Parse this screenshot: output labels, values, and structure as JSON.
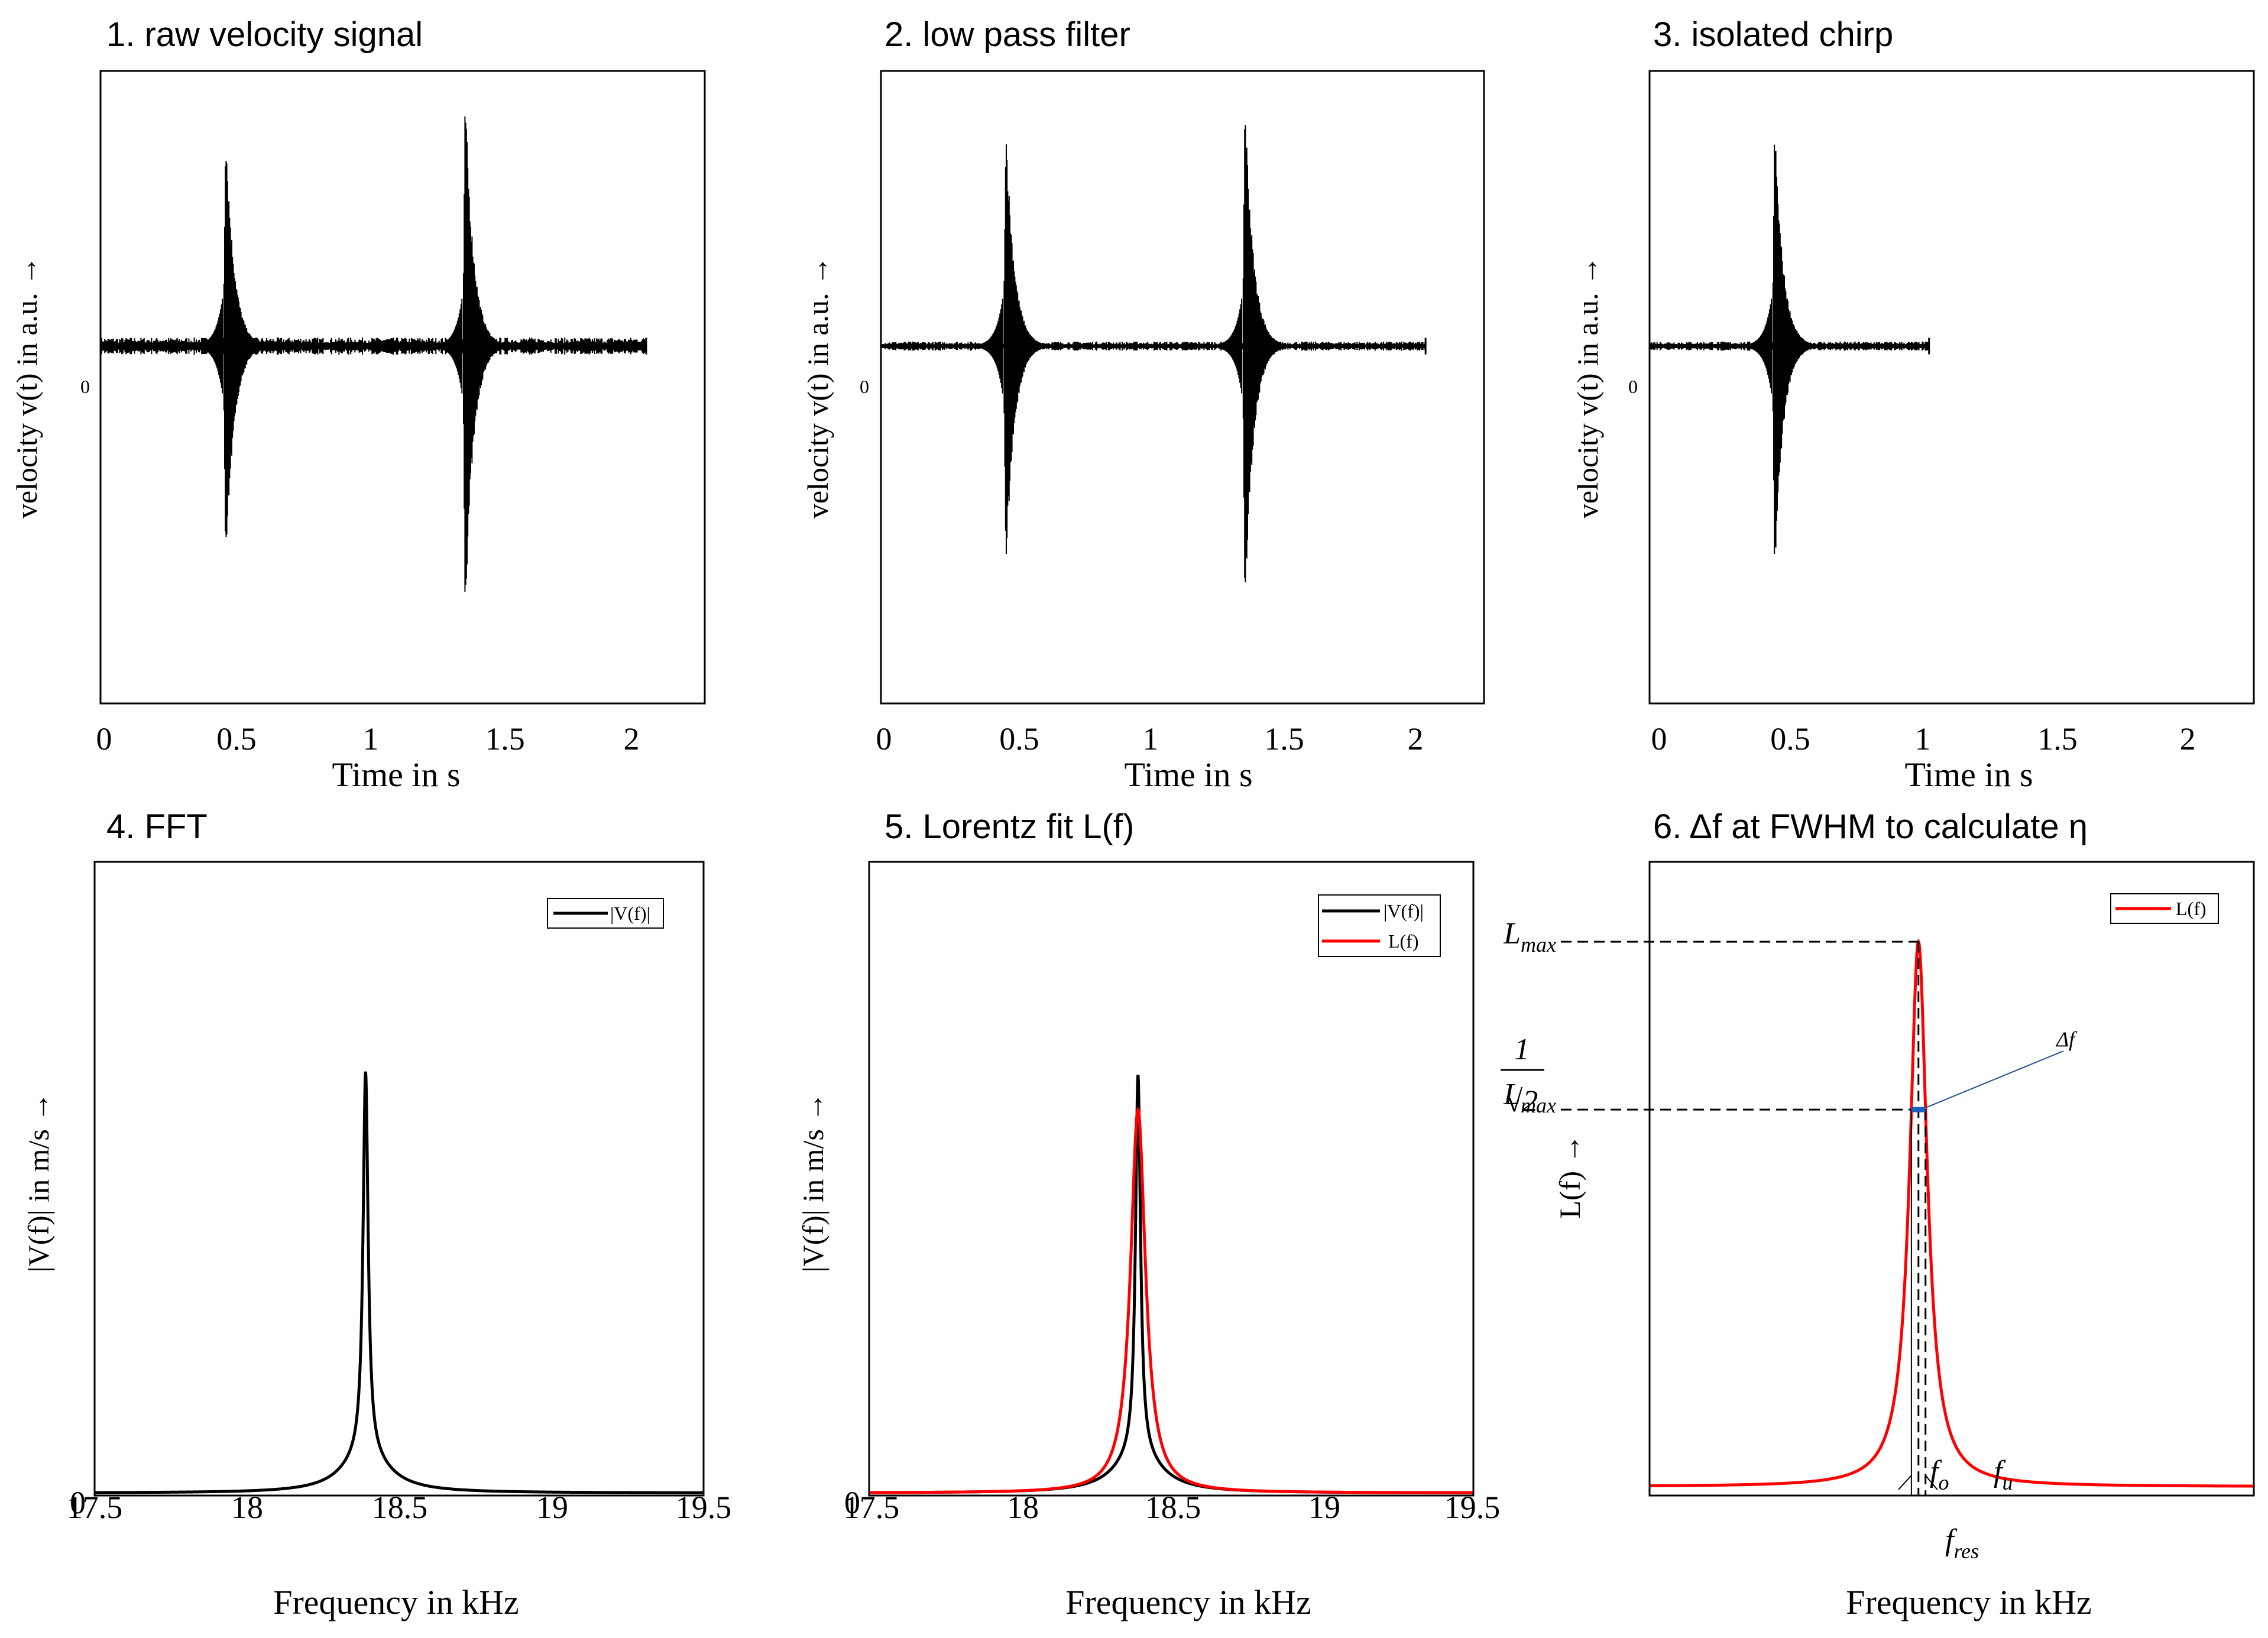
{
  "chart_data": [
    {
      "id": "p1",
      "type": "line",
      "title": "1. raw velocity signal",
      "xlabel": "Time in s",
      "ylabel": "velocity v(t) in a.u. →",
      "x_ticks": [
        "0",
        "0.5",
        "1",
        "1.5",
        "2"
      ],
      "y_ticks": [
        "0"
      ],
      "xlim": [
        0,
        2.27
      ],
      "ylim": [
        -1.0,
        0.77
      ],
      "signal_end": 2.05,
      "bursts": [
        {
          "t": 0.47,
          "pos": 0.64,
          "neg": -0.66
        },
        {
          "t": 1.37,
          "pos": 0.72,
          "neg": -0.77
        }
      ],
      "noise_level": 0.015
    },
    {
      "id": "p2",
      "type": "line",
      "title": "2. low pass filter",
      "xlabel": "Time in s",
      "ylabel": "velocity v(t) in a.u. →",
      "x_ticks": [
        "0",
        "0.5",
        "1",
        "1.5",
        "2"
      ],
      "y_ticks": [
        "0"
      ],
      "xlim": [
        0,
        2.27
      ],
      "ylim": [
        -1.0,
        0.77
      ],
      "signal_end": 2.05,
      "bursts": [
        {
          "t": 0.47,
          "pos": 0.64,
          "neg": -0.66
        },
        {
          "t": 1.37,
          "pos": 0.72,
          "neg": -0.77
        }
      ],
      "noise_level": 0.008
    },
    {
      "id": "p3",
      "type": "line",
      "title": "3. isolated chirp",
      "xlabel": "Time in s",
      "ylabel": "velocity v(t) in a.u. →",
      "x_ticks": [
        "0",
        "0.5",
        "1",
        "1.5",
        "2"
      ],
      "y_ticks": [
        "0"
      ],
      "xlim": [
        0,
        2.27
      ],
      "ylim": [
        -1.0,
        0.77
      ],
      "signal_end": 1.05,
      "bursts": [
        {
          "t": 0.47,
          "pos": 0.64,
          "neg": -0.66
        }
      ],
      "noise_level": 0.008
    },
    {
      "id": "p4",
      "type": "line",
      "title": "4. FFT",
      "xlabel": "Frequency in kHz",
      "ylabel": "|V(f)| in m/s →",
      "x_ticks": [
        "17.5",
        "18",
        "18.5",
        "19",
        "19.5"
      ],
      "y_ticks": [
        "0"
      ],
      "xlim": [
        17.5,
        19.5
      ],
      "ylim": [
        0,
        1.0
      ],
      "series": [
        {
          "name": "|V(f)|",
          "color": "#000000",
          "peak_f": 18.39,
          "peak": 0.605,
          "gamma": 0.01,
          "base": 0.004,
          "wide_amp": 0.06,
          "wide_gamma": 0.09
        }
      ],
      "legend": [
        "|V(f)|"
      ]
    },
    {
      "id": "p5",
      "type": "line",
      "title": "5. Lorentz fit L(f)",
      "xlabel": "Frequency in kHz",
      "ylabel": "|V(f)| in m/s →",
      "x_ticks": [
        "17.5",
        "18",
        "18.5",
        "19",
        "19.5"
      ],
      "y_ticks": [
        "0"
      ],
      "xlim": [
        17.5,
        19.5
      ],
      "ylim": [
        0,
        1.0
      ],
      "series": [
        {
          "name": "|V(f)|",
          "color": "#000000",
          "peak_f": 18.39,
          "peak": 0.6,
          "gamma": 0.01,
          "base": 0.004,
          "wide_amp": 0.06,
          "wide_gamma": 0.09
        },
        {
          "name": "L(f)",
          "color": "#ff0000",
          "peak_f": 18.39,
          "peak": 0.605,
          "gamma": 0.03,
          "base": 0.004,
          "wide_amp": 0,
          "wide_gamma": 0.09
        }
      ],
      "legend": [
        "|V(f)|",
        "L(f)"
      ]
    },
    {
      "id": "p6",
      "type": "line",
      "title": "6. Δf at FWHM to calculate η",
      "xlabel": "Frequency in kHz",
      "ylabel": "L(f) →",
      "x_ticks": [],
      "y_ticks": [],
      "xlim": [
        17.5,
        19.5
      ],
      "ylim": [
        0,
        1.0
      ],
      "series": [
        {
          "name": "L(f)",
          "color": "#ff0000",
          "peak_f": 18.39,
          "peak": 0.86,
          "gamma": 0.035,
          "base": 0.014,
          "wide_amp": 0,
          "wide_gamma": 0.09
        }
      ],
      "legend": [
        "L(f)"
      ],
      "annotations": {
        "lmax": "L",
        "lmax_sub": "max",
        "frac_num": "1",
        "frac_den": "√2",
        "delta_f": "Δf",
        "f_o": "f",
        "f_o_sub": "o",
        "f_u": "f",
        "f_u_sub": "u",
        "f_res": "f",
        "f_res_sub": "res",
        "half_level": 0.609,
        "band_color": "#1f5fbf"
      }
    }
  ]
}
